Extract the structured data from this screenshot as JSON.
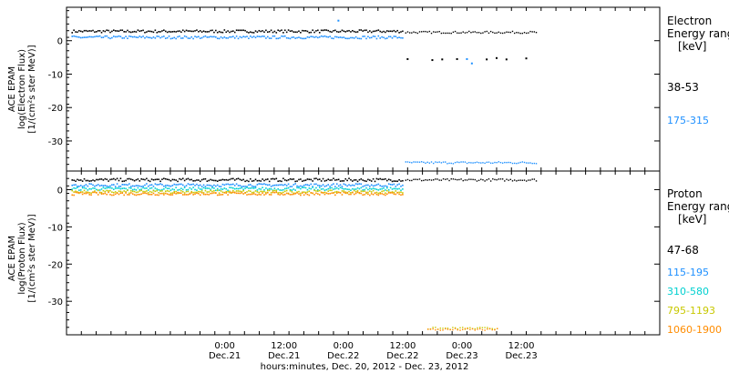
{
  "chart_data": {
    "type": "scatter",
    "x_axis": {
      "range_hours": [
        -8,
        112
      ],
      "ticks": [
        {
          "hour": 24,
          "time": "0:00",
          "date": "Dec.21"
        },
        {
          "hour": 36,
          "time": "12:00",
          "date": "Dec.21"
        },
        {
          "hour": 48,
          "time": "0:00",
          "date": "Dec.22"
        },
        {
          "hour": 60,
          "time": "12:00",
          "date": "Dec.22"
        },
        {
          "hour": 72,
          "time": "0:00",
          "date": "Dec.23"
        },
        {
          "hour": 84,
          "time": "12:00",
          "date": "Dec.23"
        }
      ],
      "xlabel": "hours:minutes, Dec. 20, 2012 - Dec. 23, 2012"
    },
    "panels": [
      {
        "id": "electron",
        "ylabel_lines": [
          "ACE EPAM",
          "log(Electron Flux)",
          "[1/(cm²s ster MeV)]"
        ],
        "ylim": [
          -39,
          10
        ],
        "yticks": [
          0,
          -10,
          -20,
          -30
        ],
        "legend_title": [
          "Electron",
          "Energy range",
          "[keV]"
        ],
        "series": [
          {
            "name": "38-53",
            "color": "#000000",
            "level": 2.8,
            "end_hour": 60,
            "after_level": 2.5,
            "after_end": 87
          },
          {
            "name": "175-315",
            "color": "#1e90ff",
            "level": 1.0,
            "end_hour": 60,
            "after_level": -36.5,
            "after_end": 87
          }
        ],
        "outliers": [
          {
            "hour": 47,
            "value": 6.0,
            "color": "#1e90ff"
          },
          {
            "hour": 61,
            "value": -5.5,
            "color": "#000000"
          },
          {
            "hour": 66,
            "value": -5.8,
            "color": "#000000"
          },
          {
            "hour": 68,
            "value": -5.6,
            "color": "#000000"
          },
          {
            "hour": 71,
            "value": -5.5,
            "color": "#000000"
          },
          {
            "hour": 73,
            "value": -5.5,
            "color": "#1e90ff"
          },
          {
            "hour": 74,
            "value": -6.8,
            "color": "#1e90ff"
          },
          {
            "hour": 77,
            "value": -5.6,
            "color": "#000000"
          },
          {
            "hour": 79,
            "value": -5.2,
            "color": "#000000"
          },
          {
            "hour": 81,
            "value": -5.6,
            "color": "#000000"
          },
          {
            "hour": 85,
            "value": -5.3,
            "color": "#000000"
          }
        ]
      },
      {
        "id": "proton",
        "ylabel_lines": [
          "ACE EPAM",
          "log(Proton Flux)",
          "[1/(cm²s ster MeV)]"
        ],
        "ylim": [
          -39,
          5
        ],
        "yticks": [
          0,
          -10,
          -20,
          -30
        ],
        "legend_title": [
          "Proton",
          "Energy range",
          "[keV]"
        ],
        "series": [
          {
            "name": "47-68",
            "color": "#000000",
            "level": 2.6,
            "end_hour": 60,
            "after_level": 2.6,
            "after_end": 87
          },
          {
            "name": "115-195",
            "color": "#1e90ff",
            "level": 1.2,
            "end_hour": 60
          },
          {
            "name": "310-580",
            "color": "#00d0d0",
            "level": 0.2,
            "end_hour": 60
          },
          {
            "name": "795-1193",
            "color": "#c8c800",
            "level": -0.6,
            "end_hour": 60,
            "after_level": -37.3,
            "after_start": 65,
            "after_end": 79
          },
          {
            "name": "1060-1900",
            "color": "#ff8c00",
            "level": -1.1,
            "end_hour": 60,
            "after_level": -37.6,
            "after_start": 65,
            "after_end": 79
          }
        ]
      }
    ]
  }
}
